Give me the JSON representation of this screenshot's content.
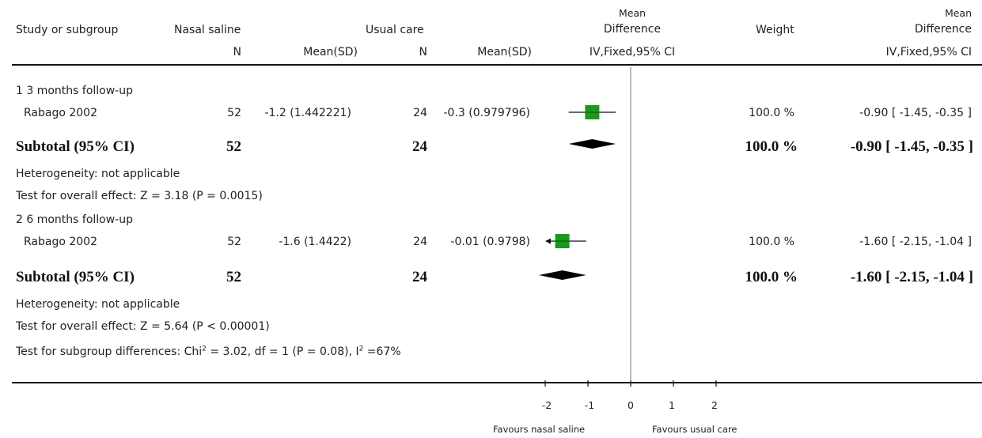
{
  "headers": {
    "study": "Study or subgroup",
    "group1": "Nasal saline",
    "group2": "Usual care",
    "md_top": "Mean",
    "md_bottom": "Difference",
    "weight": "Weight",
    "md2_top": "Mean",
    "md2_bottom": "Difference",
    "n1": "N",
    "mean1": "Mean(SD)",
    "n2": "N",
    "mean2": "Mean(SD)",
    "method": "IV,Fixed,95% CI",
    "method2": "IV,Fixed,95% CI"
  },
  "subgroups": [
    {
      "title": "1 3 months follow-up",
      "study": {
        "name": "Rabago 2002",
        "n1": "52",
        "mean1": "-1.2 (1.442221)",
        "n2": "24",
        "mean2": "-0.3 (0.979796)",
        "weight": "100.0 %",
        "ci": "-0.90 [ -1.45, -0.35 ]"
      },
      "subtotal": {
        "label": "Subtotal (95% CI)",
        "n1": "52",
        "n2": "24",
        "weight": "100.0 %",
        "ci": "-0.90 [ -1.45, -0.35 ]"
      },
      "heterogeneity": "Heterogeneity: not applicable",
      "overall": "Test for overall effect: Z = 3.18 (P = 0.0015)"
    },
    {
      "title": "2 6 months follow-up",
      "study": {
        "name": "Rabago 2002",
        "n1": "52",
        "mean1": "-1.6 (1.4422)",
        "n2": "24",
        "mean2": "-0.01 (0.9798)",
        "weight": "100.0 %",
        "ci": "-1.60 [ -2.15, -1.04 ]"
      },
      "subtotal": {
        "label": "Subtotal (95% CI)",
        "n1": "52",
        "n2": "24",
        "weight": "100.0 %",
        "ci": "-1.60 [ -2.15, -1.04 ]"
      },
      "heterogeneity": "Heterogeneity: not applicable",
      "overall": "Test for overall effect: Z = 5.64 (P < 0.00001)"
    }
  ],
  "subgroup_test": {
    "prefix": "Test for subgroup differences: Chi",
    "sup1": "2",
    "mid": " = 3.02, df = 1 (P = 0.08), I",
    "sup2": "2",
    "suffix": " =67%"
  },
  "axis": {
    "favours_left": "Favours nasal saline",
    "favours_right": "Favours usual care"
  },
  "colors": {
    "marker": "#1a9a1a",
    "line": "#111111"
  },
  "chart_data": {
    "type": "forest",
    "xlim": [
      -2,
      2
    ],
    "ticks": [
      -2,
      -1,
      0,
      1,
      2
    ],
    "tick_labels": [
      "-2",
      "-1",
      "0",
      "1",
      "2"
    ],
    "studies": [
      {
        "name": "Rabago 2002",
        "subgroup": "1 3 months follow-up",
        "estimate": -0.9,
        "ci_low": -1.45,
        "ci_high": -0.35,
        "weight": 100.0
      },
      {
        "name": "Rabago 2002",
        "subgroup": "2 6 months follow-up",
        "estimate": -1.6,
        "ci_low": -2.15,
        "ci_high": -1.04,
        "weight": 100.0
      }
    ],
    "subtotals": [
      {
        "label": "Subtotal (95% CI)",
        "estimate": -0.9,
        "ci_low": -1.45,
        "ci_high": -0.35
      },
      {
        "label": "Subtotal (95% CI)",
        "estimate": -1.6,
        "ci_low": -2.15,
        "ci_high": -1.04
      }
    ]
  }
}
